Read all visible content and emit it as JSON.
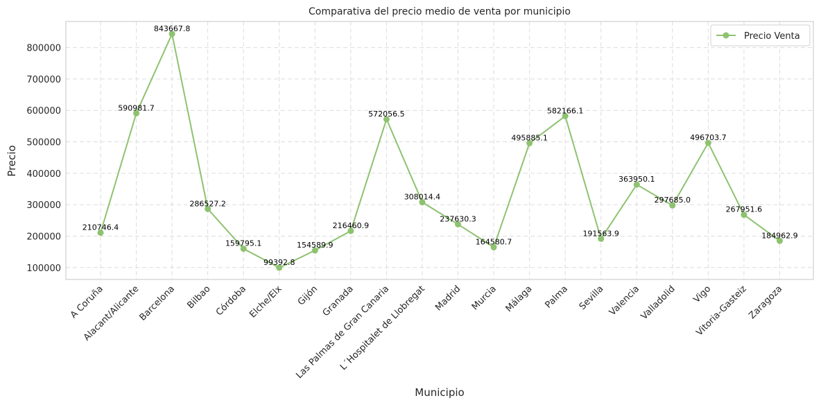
{
  "chart_data": {
    "type": "line",
    "title": "Comparativa del precio medio de venta por municipio",
    "xlabel": "Municipio",
    "ylabel": "Precio",
    "categories": [
      "A Coruña",
      "Alacant/Alicante",
      "Barcelona",
      "Bilbao",
      "Córdoba",
      "Elche/Elx",
      "Gijón",
      "Granada",
      "Las Palmas de Gran Canaria",
      "L´Hospitalet de Llobregat",
      "Madrid",
      "Murcia",
      "Málaga",
      "Palma",
      "Sevilla",
      "Valencia",
      "Valladolid",
      "Vigo",
      "Vitoria-Gasteiz",
      "Zaragoza"
    ],
    "series": [
      {
        "name": "Precio Venta",
        "color": "#8dc26f",
        "values": [
          210746.4,
          590981.7,
          843667.8,
          286527.2,
          159795.1,
          99392.8,
          154589.9,
          216460.9,
          572056.5,
          308014.4,
          237630.3,
          164580.7,
          495885.1,
          582166.1,
          191563.9,
          363950.1,
          297685.0,
          496703.7,
          267951.6,
          184962.9
        ],
        "labels": [
          "210746.4",
          "590981.7",
          "843667.8",
          "286527.2",
          "159795.1",
          "99392.8",
          "154589.9",
          "216460.9",
          "572056.5",
          "308014.4",
          "237630.3",
          "164580.7",
          "495885.1",
          "582166.1",
          "191563.9",
          "363950.1",
          "297685.0",
          "496703.7",
          "267951.6",
          "184962.9"
        ]
      }
    ],
    "yticks": [
      100000,
      200000,
      300000,
      400000,
      500000,
      600000,
      700000,
      800000
    ],
    "ylim": [
      62000,
      883000
    ],
    "grid": true,
    "legend": "top-right"
  }
}
